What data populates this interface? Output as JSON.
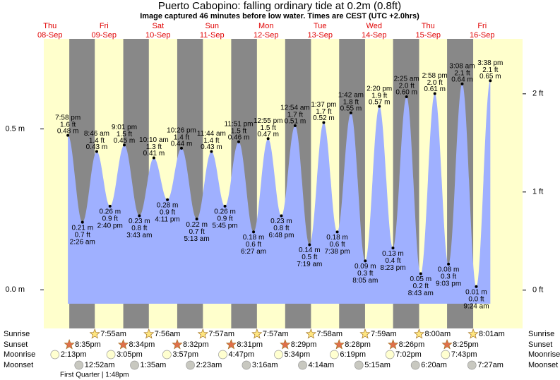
{
  "chart_data": {
    "type": "area",
    "title": "Puerto Cabopino: falling  ordinary tide at 0.2m (0.8ft)",
    "subtitle": "Image captured 46 minutes before low water. Times are CEST (UTC +2.0hrs)",
    "color": "#9fb0ff",
    "day_color": "#ffffcc",
    "night_color": "#888888",
    "days": [
      {
        "weekday": "Thu",
        "date": "08-Sep",
        "sunrise": null,
        "sunset": "8:35pm",
        "moonrise": "2:13pm",
        "moonset": null
      },
      {
        "weekday": "Fri",
        "date": "09-Sep",
        "sunrise": "7:55am",
        "sunset": "8:34pm",
        "moonrise": "3:05pm",
        "moonset": "12:52am"
      },
      {
        "weekday": "Sat",
        "date": "10-Sep",
        "sunrise": "7:56am",
        "sunset": "8:32pm",
        "moonrise": "3:57pm",
        "moonset": "1:35am"
      },
      {
        "weekday": "Sun",
        "date": "11-Sep",
        "sunrise": "7:57am",
        "sunset": "8:31pm",
        "moonrise": "4:47pm",
        "moonset": "2:23am"
      },
      {
        "weekday": "Mon",
        "date": "12-Sep",
        "sunrise": "7:57am",
        "sunset": "8:29pm",
        "moonrise": "5:34pm",
        "moonset": "3:16am"
      },
      {
        "weekday": "Tue",
        "date": "13-Sep",
        "sunrise": "7:58am",
        "sunset": "8:28pm",
        "moonrise": "6:19pm",
        "moonset": "4:14am"
      },
      {
        "weekday": "Wed",
        "date": "14-Sep",
        "sunrise": "7:59am",
        "sunset": "8:26pm",
        "moonrise": "7:02pm",
        "moonset": "5:15am"
      },
      {
        "weekday": "Thu",
        "date": "15-Sep",
        "sunrise": "8:00am",
        "sunset": "8:25pm",
        "moonrise": "7:43pm",
        "moonset": "6:20am"
      },
      {
        "weekday": "Fri",
        "date": "16-Sep",
        "sunrise": "8:01am",
        "sunset": null,
        "moonrise": null,
        "moonset": "7:27am"
      }
    ],
    "x": [
      "7:58 pm",
      "2:26 am",
      "8:46 am",
      "2:40 pm",
      "9:01 pm",
      "3:43 am",
      "10:10 am",
      "4:11 pm",
      "10:26 pm",
      "5:13 am",
      "11:44 am",
      "5:45 pm",
      "11:51 pm",
      "6:27 am",
      "12:55 pm",
      "6:48 pm",
      "12:54 am",
      "7:19 am",
      "1:37 pm",
      "7:38 pm",
      "1:42 am",
      "8:05 am",
      "2:20 pm",
      "8:23 pm",
      "2:25 am",
      "8:43 am",
      "2:58 pm",
      "9:03 pm",
      "3:08 am",
      "9:24 am",
      "3:38 pm"
    ],
    "values": [
      0.48,
      0.21,
      0.43,
      0.26,
      0.45,
      0.23,
      0.41,
      0.28,
      0.44,
      0.22,
      0.43,
      0.26,
      0.46,
      0.18,
      0.47,
      0.23,
      0.51,
      0.14,
      0.52,
      0.18,
      0.55,
      0.09,
      0.57,
      0.13,
      0.6,
      0.05,
      0.61,
      0.08,
      0.64,
      0.01,
      0.65
    ],
    "value_labels": [
      "0.48 m",
      "0.21 m",
      "0.43 m",
      "0.26 m",
      "0.45 m",
      "0.23 m",
      "0.41 m",
      "0.28 m",
      "0.44 m",
      "0.22 m",
      "0.43 m",
      "0.26 m",
      "0.46 m",
      "0.18 m",
      "0.47 m",
      "0.23 m",
      "0.51 m",
      "0.14 m",
      "0.52 m",
      "0.18 m",
      "0.55 m",
      "0.09 m",
      "0.57 m",
      "0.13 m",
      "0.60 m",
      "0.05 m",
      "0.61 m",
      "0.08 m",
      "0.64 m",
      "0.01 m",
      "0.65 m"
    ],
    "ft_labels": [
      "1.6 ft",
      "0.7 ft",
      "1.4 ft",
      "0.9 ft",
      "1.5 ft",
      "0.8 ft",
      "1.3 ft",
      "0.9 ft",
      "1.4 ft",
      "0.7 ft",
      "1.4 ft",
      "0.9 ft",
      "1.5 ft",
      "0.6 ft",
      "1.5 ft",
      "0.8 ft",
      "1.7 ft",
      "0.5 ft",
      "1.7 ft",
      "0.6 ft",
      "1.8 ft",
      "0.3 ft",
      "1.9 ft",
      "0.4 ft",
      "2.0 ft",
      "0.2 ft",
      "2.0 ft",
      "0.3 ft",
      "2.1 ft",
      "0.0 ft",
      "2.1 ft"
    ],
    "ylim": [
      -0.12,
      0.78
    ],
    "yticks": [
      {
        "value": 0,
        "label": "0.0 m"
      },
      {
        "value": 0.5,
        "label": "0.5 m"
      }
    ],
    "y2lim": [
      -0.39,
      2.56
    ],
    "y2ticks": [
      {
        "value": 0,
        "label": "0 ft"
      },
      {
        "value": 1,
        "label": "1 ft"
      },
      {
        "value": 2,
        "label": "2 ft"
      }
    ],
    "almanac_labels": [
      "Sunrise",
      "Sunset",
      "Moonrise",
      "Moonset"
    ],
    "moon_phase": "First Quarter | 1:48pm"
  }
}
